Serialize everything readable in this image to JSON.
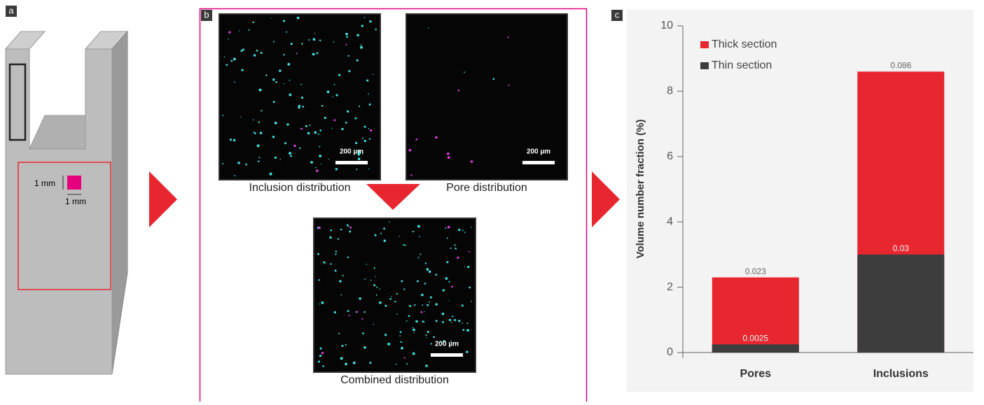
{
  "panels": {
    "a": {
      "label": "a",
      "height_label": "1 mm",
      "width_label": "1 mm"
    },
    "b": {
      "label": "b",
      "images": [
        {
          "caption": "Inclusion distribution",
          "scale": "200 µm"
        },
        {
          "caption": "Pore distribution",
          "scale": "200 µm"
        },
        {
          "caption": "Combined distribution",
          "scale": "200 µm"
        }
      ]
    },
    "c": {
      "label": "c"
    }
  },
  "chart_data": {
    "type": "bar",
    "ylabel": "Volume number fraction (%)",
    "categories": [
      "Pores",
      "Inclusions"
    ],
    "series": [
      {
        "name": "Thick section",
        "color": "#e8262f",
        "values": [
          2.3,
          8.6
        ],
        "value_labels": [
          "0.023",
          "0.086"
        ]
      },
      {
        "name": "Thin section",
        "color": "#3d3d3d",
        "values": [
          0.25,
          3
        ],
        "value_labels": [
          "0.0025",
          "0.03"
        ]
      }
    ],
    "ylim": [
      0,
      10
    ],
    "yticks": [
      0,
      2,
      4,
      6,
      8,
      10
    ],
    "legend": "upper left"
  }
}
